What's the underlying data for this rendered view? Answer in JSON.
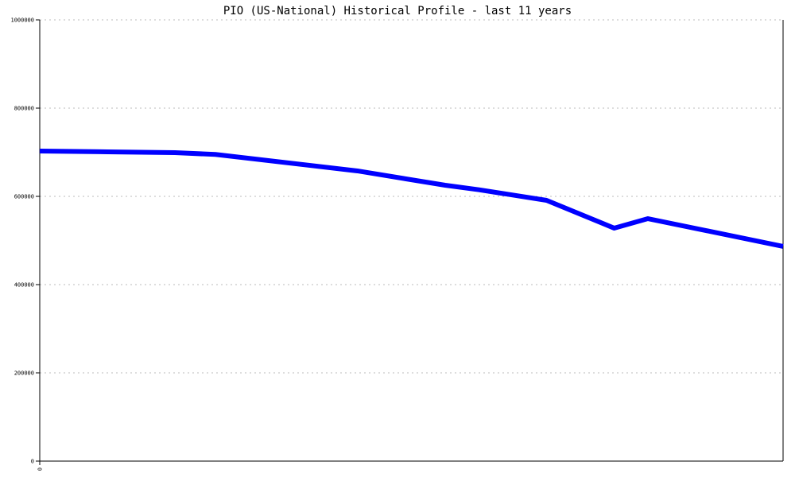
{
  "chart_data": {
    "type": "line",
    "title": "PIO (US-National) Historical Profile - last 11 years",
    "xlabel": "",
    "ylabel": "",
    "x_tick_labels": [
      "0"
    ],
    "y_tick_labels": [
      "0",
      "200000",
      "400000",
      "600000",
      "800000",
      "1000000"
    ],
    "y_ticks": [
      0,
      200000,
      400000,
      600000,
      800000,
      1000000
    ],
    "ylim": [
      0,
      1000000
    ],
    "xlim": [
      0,
      11
    ],
    "grid": "horizontal dotted",
    "legend": "none",
    "series": [
      {
        "color": "#0000ff",
        "x": [
          0,
          1,
          2,
          2.6,
          4.7,
          6.0,
          6.5,
          7.5,
          8.5,
          9.0,
          11
        ],
        "y": [
          702700,
          700900,
          699100,
          695000,
          657700,
          625200,
          615000,
          591000,
          528000,
          549500,
          486500
        ]
      }
    ]
  }
}
